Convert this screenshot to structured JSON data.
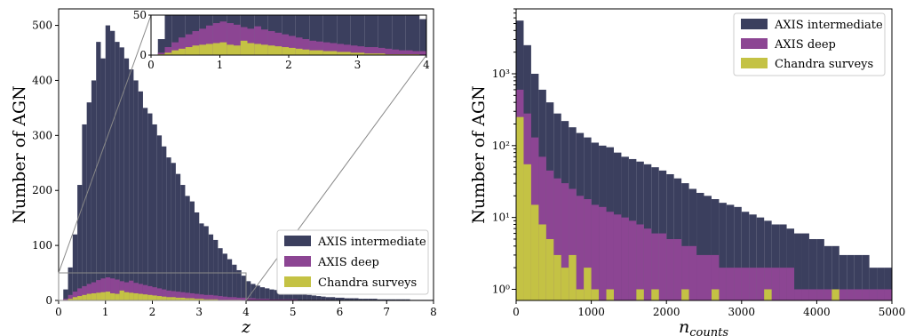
{
  "colors": {
    "axis_intermediate": "#3b3f5e",
    "axis_deep": "#8c4593",
    "chandra": "#c4c244"
  },
  "chart_data": [
    {
      "type": "bar",
      "subtype": "histogram",
      "xlabel": "z",
      "ylabel": "Number of AGN",
      "xlim": [
        0,
        8
      ],
      "ylim": [
        0,
        530
      ],
      "xticks": [
        "0",
        "1",
        "2",
        "3",
        "4",
        "5",
        "6",
        "7",
        "8"
      ],
      "yticks": [
        "0",
        "100",
        "200",
        "300",
        "400",
        "500"
      ],
      "legend_position": "lower-right",
      "bin_width": 0.1,
      "x_start": 0.0,
      "series": [
        {
          "name": "AXIS intermediate",
          "color": "#3b3f5e",
          "values": [
            0,
            20,
            60,
            120,
            210,
            320,
            360,
            400,
            470,
            440,
            500,
            490,
            470,
            460,
            440,
            420,
            400,
            380,
            350,
            340,
            320,
            300,
            280,
            260,
            250,
            230,
            210,
            190,
            180,
            160,
            140,
            135,
            120,
            110,
            95,
            85,
            75,
            65,
            55,
            45,
            35,
            30,
            27,
            24,
            22,
            20,
            19,
            18,
            17,
            16,
            15,
            13,
            11,
            10,
            9,
            8,
            7,
            6,
            6,
            5,
            5,
            4,
            4,
            4,
            3,
            3,
            3,
            3,
            2,
            2,
            2,
            2,
            2,
            2,
            2,
            1,
            1,
            1,
            1,
            1
          ]
        },
        {
          "name": "AXIS deep",
          "color": "#8c4593",
          "values": [
            0,
            3,
            10,
            16,
            22,
            26,
            30,
            33,
            37,
            40,
            42,
            40,
            38,
            35,
            33,
            36,
            32,
            30,
            28,
            26,
            24,
            22,
            20,
            18,
            17,
            16,
            15,
            14,
            13,
            12,
            11,
            10,
            10,
            9,
            8,
            7,
            6,
            6,
            5,
            5,
            4,
            4,
            3,
            3,
            3,
            2,
            2,
            2,
            2,
            2,
            2,
            1,
            1,
            1,
            1,
            1,
            1,
            1,
            0,
            0,
            0,
            0,
            0,
            0,
            0,
            0,
            0,
            0,
            0,
            0,
            0,
            0,
            0,
            0,
            0,
            0,
            0,
            0,
            0,
            0
          ]
        },
        {
          "name": "Chandra surveys",
          "color": "#c4c244",
          "values": [
            0,
            1,
            3,
            6,
            8,
            10,
            12,
            13,
            14,
            15,
            16,
            13,
            12,
            18,
            15,
            14,
            13,
            12,
            11,
            10,
            9,
            8,
            7,
            6,
            6,
            5,
            5,
            4,
            4,
            3,
            3,
            2,
            2,
            2,
            1,
            1,
            1,
            1,
            1,
            0,
            0,
            0,
            0,
            0,
            0,
            0,
            0,
            0,
            0,
            0,
            0,
            0,
            0,
            0,
            0,
            0,
            0,
            0,
            0,
            0,
            0,
            0,
            0,
            0,
            0,
            0,
            0,
            0,
            0,
            0,
            0,
            0,
            0,
            0,
            0,
            0,
            0,
            0,
            0,
            0
          ]
        }
      ],
      "inset": {
        "xlim": [
          0,
          4
        ],
        "ylim": [
          0,
          50
        ],
        "xticks": [
          "0",
          "1",
          "2",
          "3",
          "4"
        ],
        "yticks": [
          "0",
          "50"
        ]
      },
      "zoom_box": {
        "xlim": [
          0,
          4
        ],
        "ylim": [
          0,
          50
        ]
      }
    },
    {
      "type": "bar",
      "subtype": "histogram",
      "xlabel": "n_counts",
      "ylabel": "Number of AGN",
      "xlim": [
        0,
        5000
      ],
      "ylim": [
        0.7,
        8000
      ],
      "yscale": "log",
      "xticks": [
        "0",
        "1000",
        "2000",
        "3000",
        "4000",
        "5000"
      ],
      "yticks": [
        "10⁰",
        "10¹",
        "10²",
        "10³"
      ],
      "legend_position": "upper-right",
      "bin_width": 100,
      "x_start": 0,
      "series": [
        {
          "name": "AXIS intermediate",
          "color": "#3b3f5e",
          "values": [
            5500,
            2500,
            1000,
            600,
            400,
            280,
            220,
            180,
            150,
            130,
            110,
            100,
            95,
            80,
            70,
            65,
            60,
            55,
            50,
            45,
            40,
            35,
            30,
            25,
            22,
            20,
            18,
            16,
            15,
            14,
            12,
            11,
            10,
            9,
            8,
            8,
            7,
            6,
            6,
            5,
            5,
            4,
            4,
            3,
            3,
            3,
            3,
            2,
            2,
            2
          ]
        },
        {
          "name": "AXIS deep",
          "color": "#8c4593",
          "values": [
            600,
            280,
            130,
            70,
            45,
            35,
            30,
            25,
            20,
            18,
            15,
            14,
            12,
            11,
            10,
            9,
            8,
            7,
            6,
            6,
            5,
            5,
            4,
            4,
            3,
            3,
            3,
            2,
            2,
            2,
            2,
            2,
            2,
            2,
            2,
            2,
            2,
            1,
            1,
            1,
            1,
            1,
            1,
            1,
            1,
            1,
            1,
            1,
            1,
            1
          ]
        },
        {
          "name": "Chandra surveys",
          "color": "#c4c244",
          "values": [
            250,
            55,
            15,
            8,
            5,
            3,
            2,
            3,
            1,
            2,
            1,
            0,
            1,
            0,
            0,
            0,
            1,
            0,
            1,
            0,
            0,
            0,
            1,
            0,
            0,
            0,
            1,
            0,
            0,
            0,
            0,
            0,
            0,
            1,
            0,
            0,
            0,
            0,
            0,
            0,
            0,
            0,
            1,
            0,
            0,
            0,
            0,
            0,
            0,
            0
          ]
        }
      ]
    }
  ]
}
